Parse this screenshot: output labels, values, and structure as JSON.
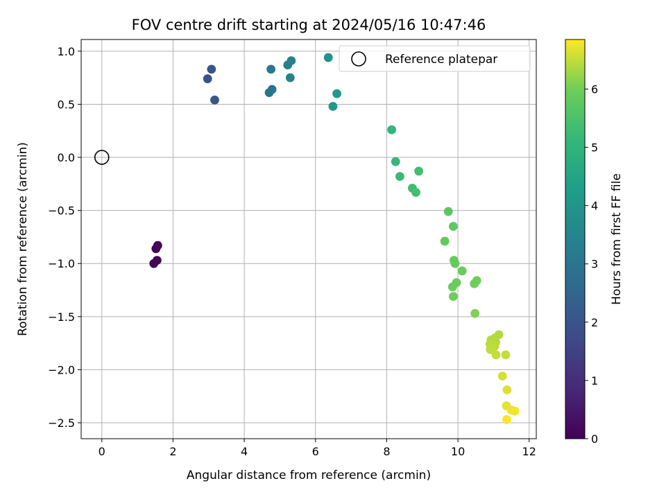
{
  "chart_data": {
    "type": "scatter",
    "title": "FOV centre drift starting at 2024/05/16 10:47:46",
    "xlabel": "Angular distance from reference (arcmin)",
    "ylabel": "Rotation from reference (arcmin)",
    "xlim": [
      -0.58,
      12.2
    ],
    "ylim": [
      -2.65,
      1.11
    ],
    "xticks": [
      0,
      2,
      4,
      6,
      8,
      10,
      12
    ],
    "yticks": [
      1.0,
      0.5,
      0.0,
      -0.5,
      -1.0,
      -1.5,
      -2.0,
      -2.5
    ],
    "xtick_labels": [
      "0",
      "2",
      "4",
      "6",
      "8",
      "10",
      "12"
    ],
    "ytick_labels": [
      "1.0",
      "0.5",
      "0.0",
      "−0.5",
      "−1.0",
      "−1.5",
      "−2.0",
      "−2.5"
    ],
    "grid": true,
    "legend": {
      "placement": "upper-right",
      "label": "Reference platepar"
    },
    "reference": {
      "x": 0.0,
      "y": 0.0
    },
    "colorbar": {
      "label": "Hours from first FF file",
      "min": 0,
      "max": 6.85,
      "ticks": [
        0,
        1,
        2,
        3,
        4,
        5,
        6
      ],
      "tick_labels": [
        "0",
        "1",
        "2",
        "3",
        "4",
        "5",
        "6"
      ],
      "colormap": "viridis"
    },
    "points": [
      {
        "x": 1.46,
        "y": -1.0,
        "hours": 0.0
      },
      {
        "x": 1.55,
        "y": -0.97,
        "hours": 0.05
      },
      {
        "x": 1.52,
        "y": -0.86,
        "hours": 0.1
      },
      {
        "x": 1.57,
        "y": -0.83,
        "hours": 0.15
      },
      {
        "x": 2.97,
        "y": 0.74,
        "hours": 1.95
      },
      {
        "x": 3.08,
        "y": 0.83,
        "hours": 2.05
      },
      {
        "x": 3.17,
        "y": 0.54,
        "hours": 2.15
      },
      {
        "x": 4.7,
        "y": 0.61,
        "hours": 2.95
      },
      {
        "x": 4.78,
        "y": 0.64,
        "hours": 3.0
      },
      {
        "x": 4.75,
        "y": 0.83,
        "hours": 3.05
      },
      {
        "x": 5.22,
        "y": 0.87,
        "hours": 3.3
      },
      {
        "x": 5.32,
        "y": 0.91,
        "hours": 3.4
      },
      {
        "x": 5.29,
        "y": 0.75,
        "hours": 3.45
      },
      {
        "x": 6.36,
        "y": 0.94,
        "hours": 3.9
      },
      {
        "x": 6.49,
        "y": 0.48,
        "hours": 4.1
      },
      {
        "x": 6.6,
        "y": 0.6,
        "hours": 4.15
      },
      {
        "x": 8.14,
        "y": 0.26,
        "hours": 5.1
      },
      {
        "x": 8.25,
        "y": -0.04,
        "hours": 5.15
      },
      {
        "x": 8.37,
        "y": -0.18,
        "hours": 5.2
      },
      {
        "x": 8.9,
        "y": -0.13,
        "hours": 5.35
      },
      {
        "x": 8.72,
        "y": -0.29,
        "hours": 5.3
      },
      {
        "x": 8.82,
        "y": -0.33,
        "hours": 5.35
      },
      {
        "x": 9.73,
        "y": -0.51,
        "hours": 5.7
      },
      {
        "x": 9.87,
        "y": -0.65,
        "hours": 5.75
      },
      {
        "x": 9.63,
        "y": -0.79,
        "hours": 5.8
      },
      {
        "x": 9.89,
        "y": -0.97,
        "hours": 5.85
      },
      {
        "x": 9.92,
        "y": -1.0,
        "hours": 5.85
      },
      {
        "x": 10.12,
        "y": -1.07,
        "hours": 5.9
      },
      {
        "x": 9.96,
        "y": -1.18,
        "hours": 5.9
      },
      {
        "x": 9.85,
        "y": -1.22,
        "hours": 5.92
      },
      {
        "x": 9.87,
        "y": -1.31,
        "hours": 5.95
      },
      {
        "x": 10.53,
        "y": -1.16,
        "hours": 6.0
      },
      {
        "x": 10.46,
        "y": -1.19,
        "hours": 6.0
      },
      {
        "x": 10.48,
        "y": -1.47,
        "hours": 6.1
      },
      {
        "x": 11.15,
        "y": -1.67,
        "hours": 6.4
      },
      {
        "x": 11.04,
        "y": -1.7,
        "hours": 6.4
      },
      {
        "x": 10.93,
        "y": -1.72,
        "hours": 6.42
      },
      {
        "x": 11.06,
        "y": -1.74,
        "hours": 6.42
      },
      {
        "x": 10.9,
        "y": -1.76,
        "hours": 6.45
      },
      {
        "x": 11.03,
        "y": -1.78,
        "hours": 6.45
      },
      {
        "x": 10.91,
        "y": -1.81,
        "hours": 6.48
      },
      {
        "x": 11.07,
        "y": -1.86,
        "hours": 6.5
      },
      {
        "x": 11.34,
        "y": -1.86,
        "hours": 6.5
      },
      {
        "x": 11.25,
        "y": -2.06,
        "hours": 6.6
      },
      {
        "x": 11.38,
        "y": -2.19,
        "hours": 6.65
      },
      {
        "x": 11.36,
        "y": -2.34,
        "hours": 6.7
      },
      {
        "x": 11.5,
        "y": -2.38,
        "hours": 6.75
      },
      {
        "x": 11.6,
        "y": -2.39,
        "hours": 6.78
      },
      {
        "x": 11.37,
        "y": -2.47,
        "hours": 6.82
      }
    ]
  }
}
